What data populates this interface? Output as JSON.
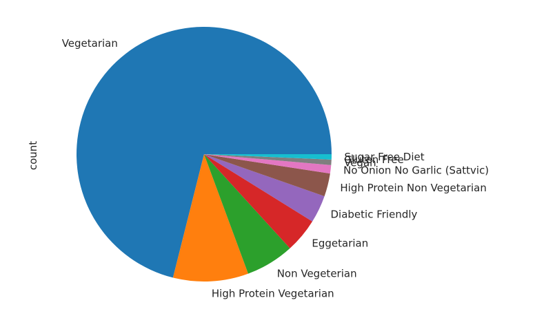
{
  "chart_data": {
    "type": "pie",
    "title": "",
    "ylabel": "count",
    "xlabel": "",
    "start_angle_deg": 0,
    "direction": "counterclockwise",
    "slices": [
      {
        "label": "Vegetarian",
        "value": 73.0,
        "color": "#1f77b4"
      },
      {
        "label": "High Protein Vegetarian",
        "value": 9.8,
        "color": "#ff7f0e"
      },
      {
        "label": "Non Vegeterian",
        "value": 6.3,
        "color": "#2ca02c"
      },
      {
        "label": "Eggetarian",
        "value": 4.5,
        "color": "#d62728"
      },
      {
        "label": "Diabetic Friendly",
        "value": 3.6,
        "color": "#9467bd"
      },
      {
        "label": "High Protein Non Vegetarian",
        "value": 3.0,
        "color": "#8c564b"
      },
      {
        "label": "No Onion No Garlic (Sattvic)",
        "value": 1.1,
        "color": "#e377c2"
      },
      {
        "label": "Vegan",
        "value": 0.7,
        "color": "#7f7f7f"
      },
      {
        "label": "Gluten Free",
        "value": 0.0,
        "color": "#bcbd22"
      },
      {
        "label": "Sugar Free Diet",
        "value": 0.7,
        "color": "#17becf"
      }
    ]
  }
}
